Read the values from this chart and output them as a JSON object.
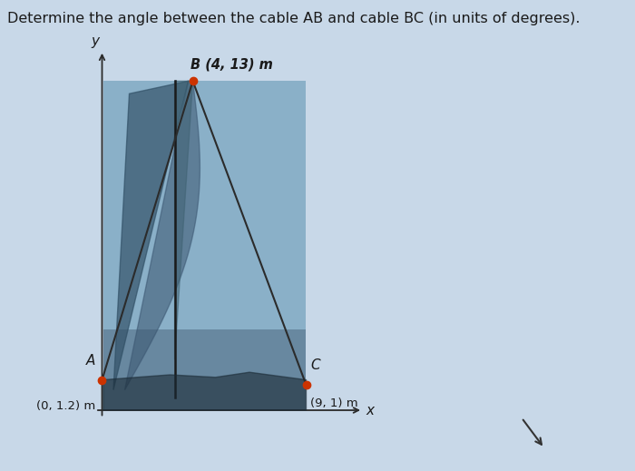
{
  "title": "Determine the angle between the cable AB and cable BC (in units of degrees).",
  "title_fontsize": 11.5,
  "bg_color": "#c8d8e8",
  "fig_bg_color": "#c8d8e8",
  "point_A": [
    0,
    1.2
  ],
  "point_B": [
    4,
    13
  ],
  "point_C": [
    9,
    1
  ],
  "label_A": "A",
  "label_B": "B (4, 13) m",
  "label_C": "C",
  "coord_A": "(0, 1.2) m",
  "coord_C": "(9, 1) m",
  "dot_color": "#cc3300",
  "line_color": "#2b2b2b",
  "axis_color": "#2b2b2b",
  "text_color": "#1a1a1a",
  "boat_rect_color": "#8ab0c8",
  "boat_hull_color": "#5a7a90",
  "sail_dark": "#3a5570",
  "mast_color": "#1a1a1a",
  "cursor_color": "#333333"
}
